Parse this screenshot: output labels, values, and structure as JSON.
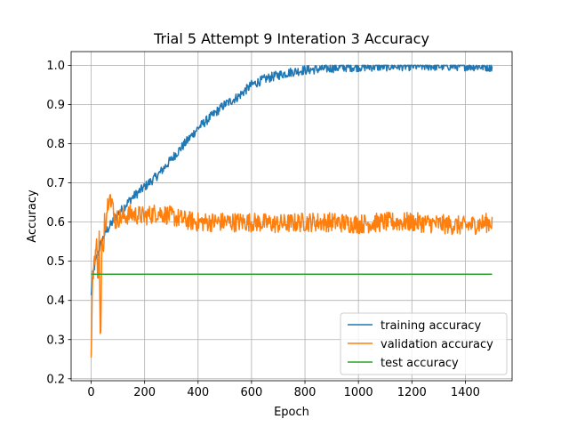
{
  "chart_data": {
    "type": "line",
    "title": "Trial 5 Attempt 9 Interation 3 Accuracy",
    "xlabel": "Epoch",
    "ylabel": "Accuracy",
    "xlim": [
      -75,
      1575
    ],
    "ylim": [
      0.195,
      1.035
    ],
    "xticks": [
      0,
      200,
      400,
      600,
      800,
      1000,
      1200,
      1400
    ],
    "yticks": [
      0.2,
      0.3,
      0.4,
      0.5,
      0.6,
      0.7,
      0.8,
      0.9,
      1.0
    ],
    "xtick_labels": [
      "0",
      "200",
      "400",
      "600",
      "800",
      "1000",
      "1200",
      "1400"
    ],
    "ytick_labels": [
      "0.2",
      "0.3",
      "0.4",
      "0.5",
      "0.6",
      "0.7",
      "0.8",
      "0.9",
      "1.0"
    ],
    "grid": true,
    "legend_position": "lower-right",
    "series": [
      {
        "name": "training accuracy",
        "color": "#1f77b4",
        "noise": 0.012,
        "x": [
          0,
          5,
          10,
          20,
          30,
          40,
          50,
          60,
          80,
          100,
          150,
          200,
          250,
          300,
          350,
          400,
          450,
          500,
          550,
          600,
          650,
          700,
          750,
          800,
          850,
          900,
          950,
          1000,
          1100,
          1200,
          1300,
          1400,
          1500
        ],
        "y": [
          0.41,
          0.46,
          0.48,
          0.51,
          0.53,
          0.55,
          0.57,
          0.58,
          0.6,
          0.62,
          0.66,
          0.69,
          0.72,
          0.76,
          0.8,
          0.84,
          0.87,
          0.9,
          0.92,
          0.95,
          0.965,
          0.975,
          0.983,
          0.988,
          0.99,
          0.993,
          0.995,
          0.996,
          0.997,
          0.998,
          0.998,
          0.998,
          0.996
        ]
      },
      {
        "name": "validation accuracy",
        "color": "#ff7f0e",
        "noise": 0.025,
        "x": [
          0,
          3,
          6,
          10,
          15,
          20,
          25,
          30,
          35,
          40,
          45,
          50,
          55,
          60,
          65,
          70,
          75,
          80,
          90,
          100,
          150,
          200,
          250,
          300,
          350,
          400,
          500,
          600,
          700,
          800,
          900,
          1000,
          1100,
          1200,
          1300,
          1400,
          1500
        ],
        "y": [
          0.24,
          0.38,
          0.45,
          0.5,
          0.52,
          0.54,
          0.46,
          0.56,
          0.25,
          0.55,
          0.5,
          0.62,
          0.6,
          0.64,
          0.66,
          0.69,
          0.63,
          0.65,
          0.6,
          0.61,
          0.62,
          0.615,
          0.625,
          0.615,
          0.605,
          0.6,
          0.6,
          0.6,
          0.595,
          0.6,
          0.6,
          0.595,
          0.6,
          0.6,
          0.595,
          0.59,
          0.6
        ]
      },
      {
        "name": "test accuracy",
        "color": "#2ca02c",
        "noise": 0,
        "x": [
          0,
          1500
        ],
        "y": [
          0.467,
          0.467
        ]
      }
    ]
  }
}
